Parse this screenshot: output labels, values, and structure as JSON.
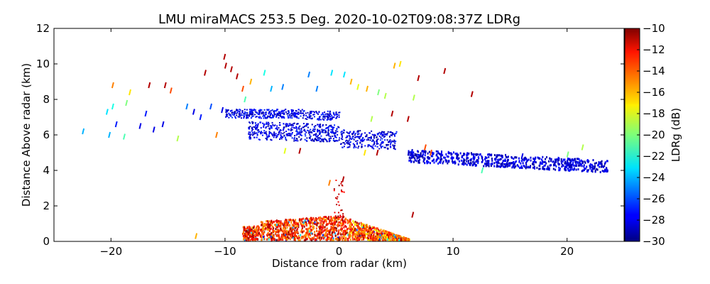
{
  "chart_data": {
    "type": "heatmap",
    "title": "LMU miraMACS 253.5 Deg. 2020-10-02T09:08:37Z  LDRg",
    "xlabel": "Distance from radar (km)",
    "ylabel": "Distance Above radar  (km)",
    "xlim": [
      -25,
      25
    ],
    "ylim": [
      0,
      12
    ],
    "x_ticks": [
      -20,
      -10,
      0,
      10,
      20
    ],
    "x_tick_labels": [
      "−20",
      "−10",
      "0",
      "10",
      "20"
    ],
    "y_ticks": [
      0,
      2,
      4,
      6,
      8,
      10,
      12
    ],
    "y_tick_labels": [
      "0",
      "2",
      "4",
      "6",
      "8",
      "10",
      "12"
    ],
    "colorbar": {
      "label": "LDRg (dB)",
      "range": [
        -30,
        -10
      ],
      "ticks": [
        -30,
        -28,
        -26,
        -24,
        -22,
        -20,
        -18,
        -16,
        -14,
        -12,
        -10
      ],
      "tick_labels": [
        "−30",
        "−28",
        "−26",
        "−24",
        "−22",
        "−20",
        "−18",
        "−16",
        "−14",
        "−12",
        "−10"
      ],
      "colormap": "jet"
    },
    "regions": [
      {
        "name": "low-level echo (high LDRg)",
        "x_range": [
          -8.5,
          6.5
        ],
        "y_range": [
          0,
          1.8
        ],
        "ldr_db": -11
      },
      {
        "name": "upper layer 1 (low LDRg)",
        "x_range": [
          -10,
          0
        ],
        "y_range": [
          6.8,
          7.4
        ],
        "ldr_db": -29
      },
      {
        "name": "upper layer 2 (low LDRg)",
        "x_range": [
          -8,
          5
        ],
        "y_range": [
          5.5,
          6.6
        ],
        "ldr_db": -29
      },
      {
        "name": "tilted layer (low LDRg)",
        "x_range": [
          6,
          23.5
        ],
        "y_range": [
          3.8,
          4.9
        ],
        "ldr_db": -29
      },
      {
        "name": "scattered high-altitude speckles",
        "x_range": [
          -23,
          12
        ],
        "y_range": [
          5.8,
          10.6
        ],
        "ldr_db": -20
      }
    ]
  }
}
